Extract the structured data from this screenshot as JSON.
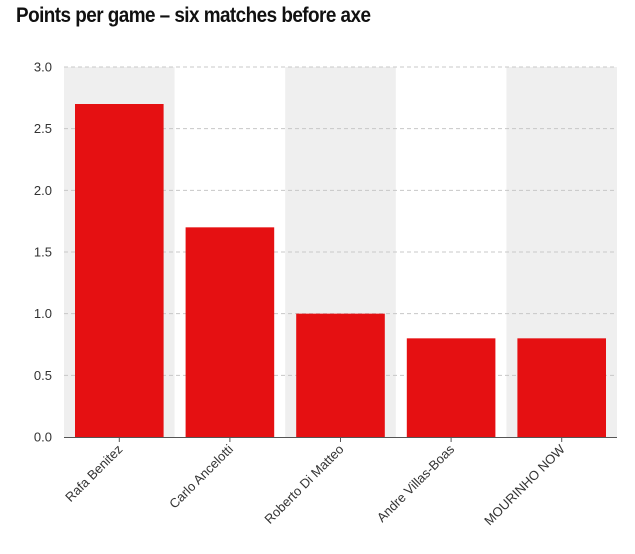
{
  "chart_data": {
    "type": "bar",
    "title": "Points per game – six matches before axe",
    "categories": [
      "Rafa Benitez",
      "Carlo Ancelotti",
      "Roberto Di Matteo",
      "Andre Villas-Boas",
      "MOURINHO NOW"
    ],
    "values": [
      2.7,
      1.7,
      1.0,
      0.8,
      0.8
    ],
    "xlabel": "",
    "ylabel": "",
    "ylim": [
      0,
      3
    ],
    "yticks": [
      "0.0",
      "0.5",
      "1.0",
      "1.5",
      "2.0",
      "2.5",
      "3.0"
    ],
    "grid": true,
    "colors": {
      "bar": "#e51012",
      "band": "#efefef",
      "grid": "#c8c8c8"
    }
  }
}
